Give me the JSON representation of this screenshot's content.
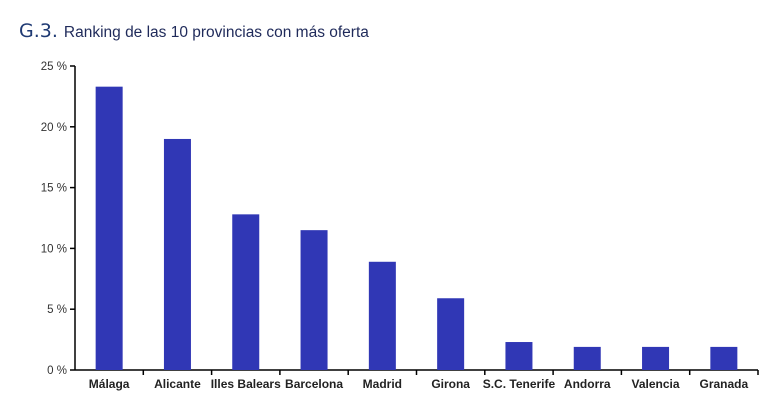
{
  "header": {
    "figure_number": "G.3.",
    "title": "Ranking de las 10 provincias con más oferta"
  },
  "chart_data": {
    "type": "bar",
    "title": "Ranking de las 10 provincias con más oferta",
    "xlabel": "",
    "ylabel": "",
    "categories": [
      "Málaga",
      "Alicante",
      "Illes Balears",
      "Barcelona",
      "Madrid",
      "Girona",
      "S.C. Tenerife",
      "Andorra",
      "Valencia",
      "Granada"
    ],
    "series": [
      {
        "values": [
          23.3,
          19.0,
          12.8,
          11.5,
          8.9,
          5.9,
          2.3,
          1.9,
          1.9,
          1.9
        ]
      }
    ],
    "ylim": [
      0,
      25
    ],
    "yticks": [
      0,
      5,
      10,
      15,
      20,
      25
    ],
    "ytick_labels": [
      "0 %",
      "5 %",
      "10 %",
      "15 %",
      "20 %",
      "25 %"
    ],
    "grid": false,
    "legend": "none",
    "bar_color": "#3037b5",
    "axis_color": "#000000"
  }
}
